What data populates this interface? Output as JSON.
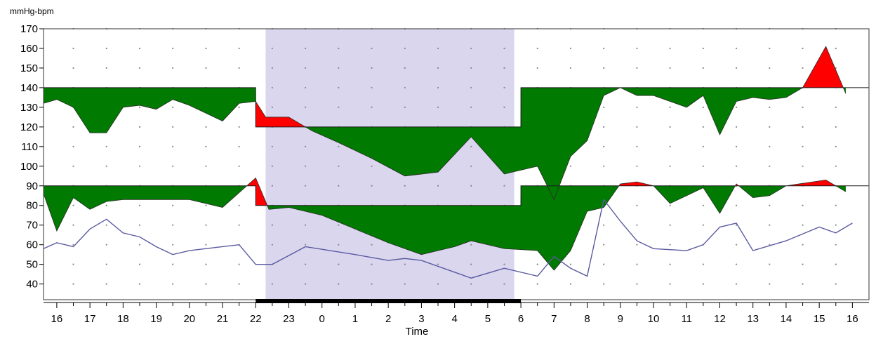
{
  "chart_data": {
    "type": "area",
    "ylabel": "mmHg-bpm",
    "xlabel": "Time",
    "ylim": [
      32,
      170
    ],
    "y_ticks": [
      40,
      50,
      60,
      70,
      80,
      90,
      100,
      110,
      120,
      130,
      140,
      150,
      160,
      170
    ],
    "x_ticks": [
      {
        "h": 16,
        "label": "16"
      },
      {
        "h": 17,
        "label": "17"
      },
      {
        "h": 18,
        "label": "18"
      },
      {
        "h": 19,
        "label": "19"
      },
      {
        "h": 20,
        "label": "20"
      },
      {
        "h": 21,
        "label": "21"
      },
      {
        "h": 22,
        "label": "22"
      },
      {
        "h": 23,
        "label": "23"
      },
      {
        "h": 24,
        "label": "0"
      },
      {
        "h": 25,
        "label": "1"
      },
      {
        "h": 26,
        "label": "2"
      },
      {
        "h": 27,
        "label": "3"
      },
      {
        "h": 28,
        "label": "4"
      },
      {
        "h": 29,
        "label": "5"
      },
      {
        "h": 30,
        "label": "6"
      },
      {
        "h": 31,
        "label": "7"
      },
      {
        "h": 32,
        "label": "8"
      },
      {
        "h": 33,
        "label": "9"
      },
      {
        "h": 34,
        "label": "10"
      },
      {
        "h": 35,
        "label": "11"
      },
      {
        "h": 36,
        "label": "12"
      },
      {
        "h": 37,
        "label": "13"
      },
      {
        "h": 38,
        "label": "14"
      },
      {
        "h": 39,
        "label": "15"
      },
      {
        "h": 40,
        "label": "16"
      }
    ],
    "grid": "dotted",
    "night_shading": {
      "from": 22.3,
      "to": 29.8,
      "color": "#d9d6ee"
    },
    "sleep_bar": {
      "from": 22,
      "to": 30,
      "color": "#000000"
    },
    "systolic_threshold": [
      [
        15.6,
        140
      ],
      [
        22,
        140
      ],
      [
        22,
        120
      ],
      [
        30,
        120
      ],
      [
        30,
        140
      ],
      [
        40.5,
        140
      ]
    ],
    "diastolic_threshold": [
      [
        15.6,
        90
      ],
      [
        22,
        90
      ],
      [
        22,
        80
      ],
      [
        30,
        80
      ],
      [
        30,
        90
      ],
      [
        40.5,
        90
      ]
    ],
    "systolic": [
      [
        15.6,
        132
      ],
      [
        16,
        134
      ],
      [
        16.5,
        130
      ],
      [
        17,
        117
      ],
      [
        17.5,
        117
      ],
      [
        18,
        130
      ],
      [
        18.5,
        131
      ],
      [
        19,
        129
      ],
      [
        19.5,
        134
      ],
      [
        20,
        131
      ],
      [
        20.5,
        127
      ],
      [
        21,
        123
      ],
      [
        21.5,
        132
      ],
      [
        22,
        133
      ],
      [
        22.3,
        125
      ],
      [
        23,
        125
      ],
      [
        23.7,
        118
      ],
      [
        24.5,
        112
      ],
      [
        25.5,
        104
      ],
      [
        26.5,
        95
      ],
      [
        27.5,
        97
      ],
      [
        28.5,
        115
      ],
      [
        29.5,
        96
      ],
      [
        30,
        98
      ],
      [
        30.5,
        100
      ],
      [
        31,
        83
      ],
      [
        31.5,
        105
      ],
      [
        32,
        113
      ],
      [
        32.5,
        136
      ],
      [
        33,
        140
      ],
      [
        33.5,
        136
      ],
      [
        34,
        136
      ],
      [
        34.5,
        133
      ],
      [
        35,
        130
      ],
      [
        35.5,
        136
      ],
      [
        36,
        116
      ],
      [
        36.5,
        133
      ],
      [
        37,
        135
      ],
      [
        37.5,
        134
      ],
      [
        38,
        135
      ],
      [
        38.5,
        140
      ],
      [
        39.2,
        161
      ],
      [
        39.8,
        137
      ]
    ],
    "diastolic": [
      [
        15.6,
        86
      ],
      [
        16,
        67
      ],
      [
        16.5,
        84
      ],
      [
        17,
        78
      ],
      [
        17.5,
        82
      ],
      [
        18,
        83
      ],
      [
        19,
        83
      ],
      [
        20,
        83
      ],
      [
        21,
        79
      ],
      [
        21.8,
        91
      ],
      [
        22,
        94
      ],
      [
        22.4,
        78
      ],
      [
        23,
        79
      ],
      [
        24,
        75
      ],
      [
        25,
        68
      ],
      [
        26,
        61
      ],
      [
        27,
        55
      ],
      [
        28,
        59
      ],
      [
        28.5,
        62
      ],
      [
        29.5,
        58
      ],
      [
        30.5,
        57
      ],
      [
        31,
        47
      ],
      [
        31.5,
        57
      ],
      [
        32,
        77
      ],
      [
        32.5,
        79
      ],
      [
        33,
        91
      ],
      [
        33.5,
        92
      ],
      [
        34,
        90
      ],
      [
        34.5,
        81
      ],
      [
        35,
        85
      ],
      [
        35.5,
        89
      ],
      [
        36,
        76
      ],
      [
        36.5,
        91
      ],
      [
        37,
        84
      ],
      [
        37.5,
        85
      ],
      [
        38,
        90
      ],
      [
        39.2,
        93
      ],
      [
        39.8,
        87
      ]
    ],
    "heart_rate": [
      [
        15.6,
        58
      ],
      [
        16,
        61
      ],
      [
        16.5,
        59
      ],
      [
        17,
        68
      ],
      [
        17.5,
        73
      ],
      [
        18,
        66
      ],
      [
        18.5,
        64
      ],
      [
        19,
        59
      ],
      [
        19.5,
        55
      ],
      [
        20,
        57
      ],
      [
        21,
        59
      ],
      [
        21.5,
        60
      ],
      [
        22,
        50
      ],
      [
        22.5,
        50
      ],
      [
        23.5,
        59
      ],
      [
        25,
        55
      ],
      [
        26,
        52
      ],
      [
        26.5,
        53
      ],
      [
        27,
        52
      ],
      [
        28,
        46
      ],
      [
        28.5,
        43
      ],
      [
        29.5,
        48
      ],
      [
        30.5,
        44
      ],
      [
        31,
        54
      ],
      [
        31.5,
        48
      ],
      [
        32,
        44
      ],
      [
        32.5,
        83
      ],
      [
        33,
        72
      ],
      [
        33.5,
        62
      ],
      [
        34,
        58
      ],
      [
        35,
        57
      ],
      [
        35.5,
        60
      ],
      [
        36,
        69
      ],
      [
        36.5,
        71
      ],
      [
        37,
        57
      ],
      [
        38,
        62
      ],
      [
        39,
        69
      ],
      [
        39.5,
        66
      ],
      [
        40,
        71
      ]
    ],
    "colors": {
      "above_threshold": "#ff0000",
      "below_threshold": "#007a00",
      "heart_rate": "#5a5aa0"
    }
  }
}
